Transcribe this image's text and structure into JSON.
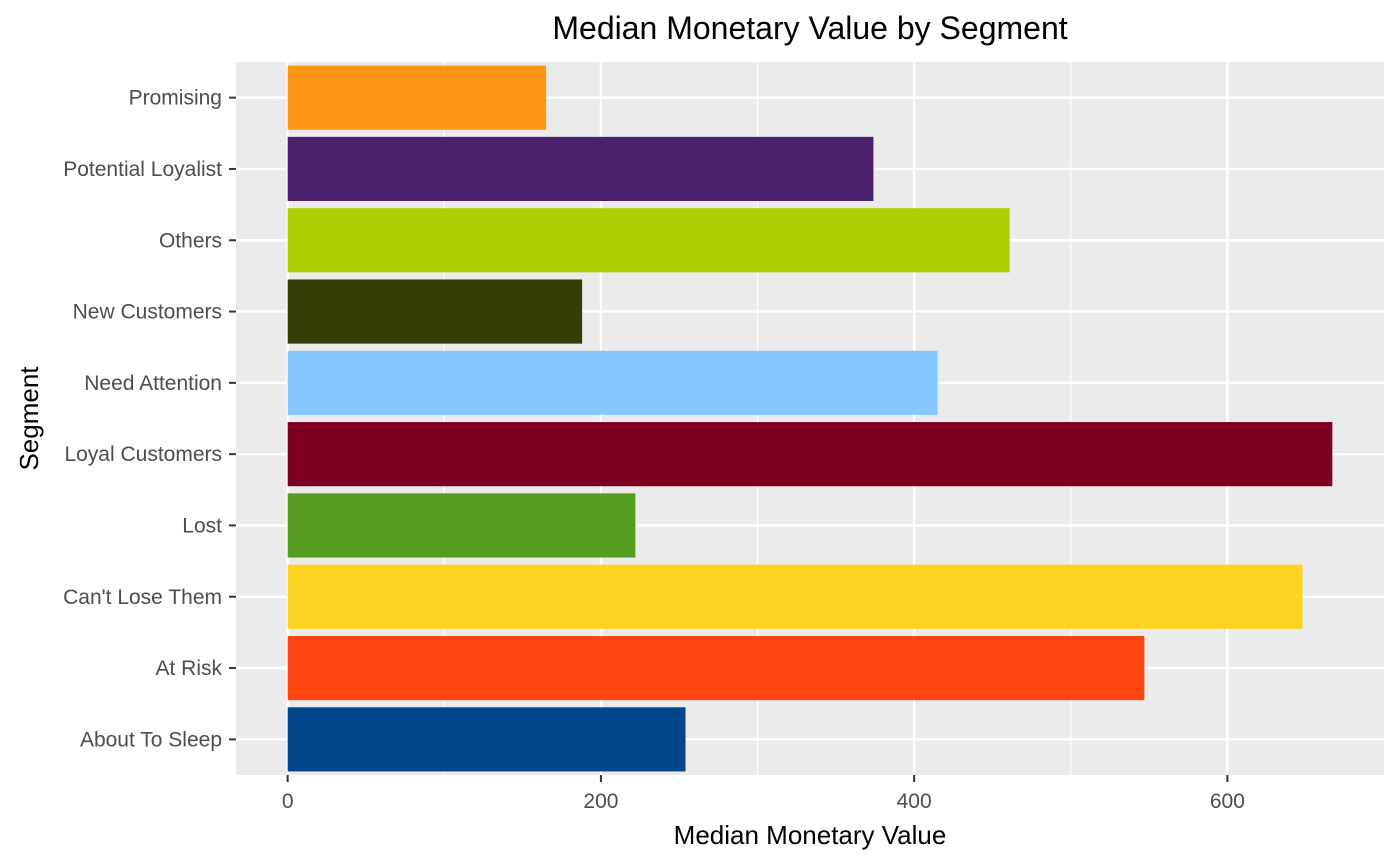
{
  "chart_data": {
    "type": "bar",
    "orientation": "horizontal",
    "title": "Median Monetary Value by Segment",
    "xlabel": "Median Monetary Value",
    "ylabel": "Segment",
    "xlim": [
      -33,
      700
    ],
    "xticks": [
      0,
      200,
      400,
      600
    ],
    "grid": true,
    "legend": "none",
    "panel_background": "#ebebeb",
    "grid_color": "#ffffff",
    "bars": [
      {
        "category": "About To Sleep",
        "value": 254,
        "color": "#00468b"
      },
      {
        "category": "At Risk",
        "value": 547,
        "color": "#ff4511"
      },
      {
        "category": "Can't Lose Them",
        "value": 648,
        "color": "#fdd221"
      },
      {
        "category": "Lost",
        "value": 222,
        "color": "#559d1e"
      },
      {
        "category": "Loyal Customers",
        "value": 667,
        "color": "#7d0022"
      },
      {
        "category": "Need Attention",
        "value": 415,
        "color": "#85c7ff"
      },
      {
        "category": "New Customers",
        "value": 188,
        "color": "#323f05"
      },
      {
        "category": "Others",
        "value": 461,
        "color": "#add001"
      },
      {
        "category": "Potential Loyalist",
        "value": 374,
        "color": "#4b206d"
      },
      {
        "category": "Promising",
        "value": 165,
        "color": "#fe9613"
      }
    ]
  }
}
